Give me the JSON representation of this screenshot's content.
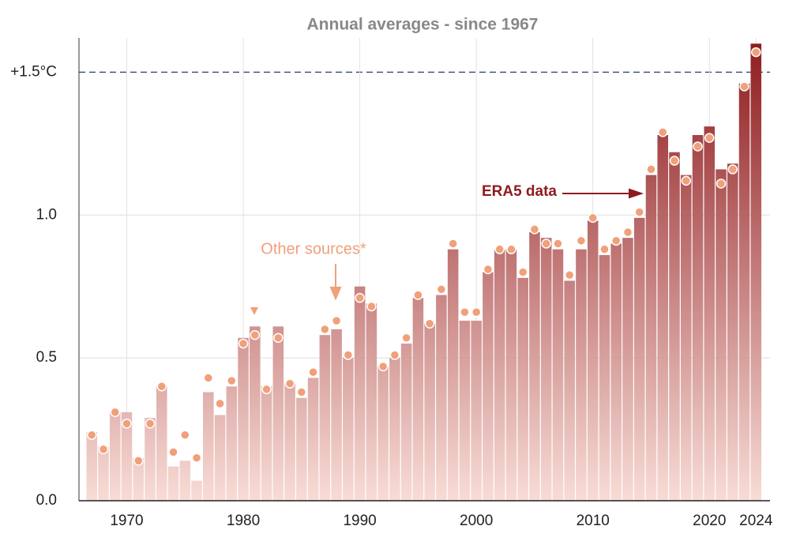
{
  "chart_data": {
    "type": "bar",
    "title": "Annual averages - since 1967",
    "x": [
      1967,
      1968,
      1969,
      1970,
      1971,
      1972,
      1973,
      1974,
      1975,
      1976,
      1977,
      1978,
      1979,
      1980,
      1981,
      1982,
      1983,
      1984,
      1985,
      1986,
      1987,
      1988,
      1989,
      1990,
      1991,
      1992,
      1993,
      1994,
      1995,
      1996,
      1997,
      1998,
      1999,
      2000,
      2001,
      2002,
      2003,
      2004,
      2005,
      2006,
      2007,
      2008,
      2009,
      2010,
      2011,
      2012,
      2013,
      2014,
      2015,
      2016,
      2017,
      2018,
      2019,
      2020,
      2021,
      2022,
      2023,
      2024
    ],
    "series": [
      {
        "name": "ERA5 data",
        "color": "#8e1b1f",
        "values": [
          0.24,
          0.19,
          0.31,
          0.31,
          0.15,
          0.29,
          0.4,
          0.12,
          0.14,
          0.07,
          0.38,
          0.3,
          0.4,
          0.57,
          0.61,
          0.4,
          0.61,
          0.41,
          0.36,
          0.43,
          0.58,
          0.6,
          0.5,
          0.75,
          0.69,
          0.47,
          0.5,
          0.55,
          0.71,
          0.62,
          0.72,
          0.88,
          0.63,
          0.63,
          0.8,
          0.88,
          0.88,
          0.78,
          0.94,
          0.92,
          0.88,
          0.77,
          0.88,
          0.98,
          0.86,
          0.9,
          0.92,
          0.99,
          1.14,
          1.28,
          1.22,
          1.14,
          1.28,
          1.31,
          1.16,
          1.18,
          1.46,
          1.6
        ]
      },
      {
        "name": "Other sources*",
        "color": "#f0a07a",
        "values": [
          0.23,
          0.18,
          0.31,
          0.27,
          0.14,
          0.27,
          0.4,
          0.17,
          0.23,
          0.15,
          0.43,
          0.34,
          0.42,
          0.55,
          0.58,
          0.39,
          0.57,
          0.41,
          0.38,
          0.45,
          0.6,
          0.63,
          0.51,
          0.71,
          0.68,
          0.47,
          0.51,
          0.57,
          0.72,
          0.62,
          0.74,
          0.9,
          0.66,
          0.66,
          0.81,
          0.88,
          0.88,
          0.8,
          0.95,
          0.9,
          0.9,
          0.79,
          0.91,
          0.99,
          0.88,
          0.91,
          0.94,
          1.01,
          1.16,
          1.29,
          1.19,
          1.12,
          1.24,
          1.27,
          1.11,
          1.16,
          1.45,
          1.57
        ]
      }
    ],
    "xlim": [
      1965.9,
      2025.2
    ],
    "xticks": [
      1970,
      1980,
      1990,
      2000,
      2010,
      2020,
      2024
    ],
    "ylim": [
      0,
      1.62
    ],
    "yticks": [
      {
        "value": 0,
        "label": "0.0"
      },
      0.5,
      {
        "value": 1,
        "label": "1.0"
      },
      {
        "value": 1.5,
        "label": "+1.5°C"
      }
    ],
    "grid": true
  }
}
